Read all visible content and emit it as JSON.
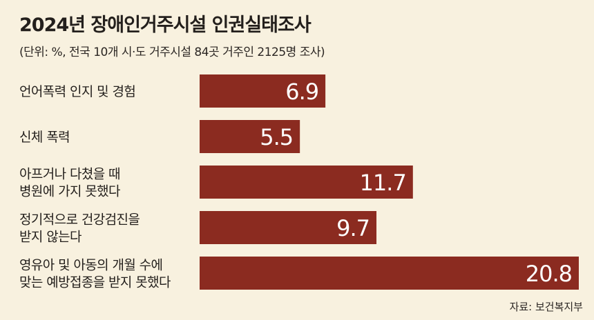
{
  "header": {
    "title": "2024년 장애인거주시설 인권실태조사",
    "subtitle": "(단위: %, 전국 10개 시·도 거주시설 84곳 거주인 2125명 조사)"
  },
  "source": "자료: 보건복지부",
  "colors": {
    "bar": "#8b2b20",
    "background": "#f8f1df",
    "value_text": "#ffffff"
  },
  "chart_data": {
    "type": "bar",
    "orientation": "horizontal",
    "categories": [
      [
        "언어폭력 인지 및 경험"
      ],
      [
        "신체 폭력"
      ],
      [
        "아프거나 다쳤을 때",
        "병원에 가지 못했다"
      ],
      [
        "정기적으로 건강검진을",
        "받지 않는다"
      ],
      [
        "영유아 및 아동의 개월 수에",
        "맞는 예방접종을 받지 못했다"
      ]
    ],
    "values": [
      6.9,
      5.5,
      11.7,
      9.7,
      20.8
    ],
    "value_labels": [
      "6.9",
      "5.5",
      "11.7",
      "9.7",
      "20.8"
    ],
    "xlim": [
      0,
      20.8
    ],
    "unit": "%",
    "grid": false,
    "legend": "none"
  }
}
